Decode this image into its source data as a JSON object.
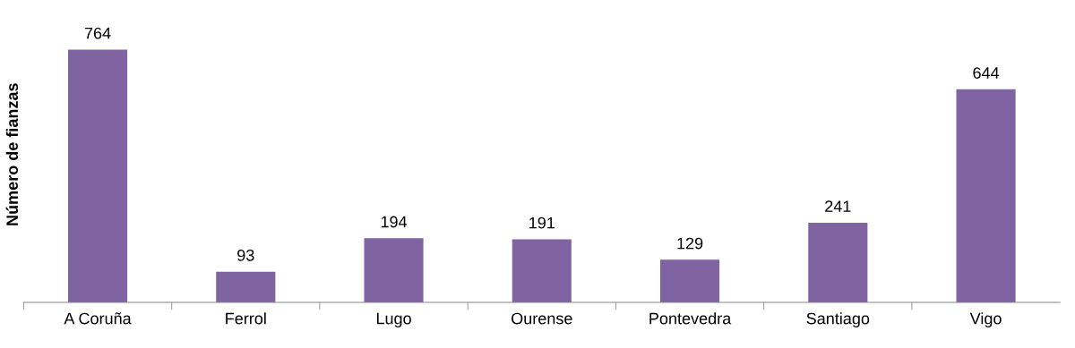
{
  "chart_data": {
    "type": "bar",
    "ylabel": "Número de fianzas",
    "categories": [
      "A Coruña",
      "Ferrol",
      "Lugo",
      "Ourense",
      "Pontevedra",
      "Santiago",
      "Vigo"
    ],
    "values": [
      764,
      93,
      194,
      191,
      129,
      241,
      644
    ],
    "color": "#8064a2",
    "data_labels": true,
    "grid": false,
    "legend": false
  }
}
